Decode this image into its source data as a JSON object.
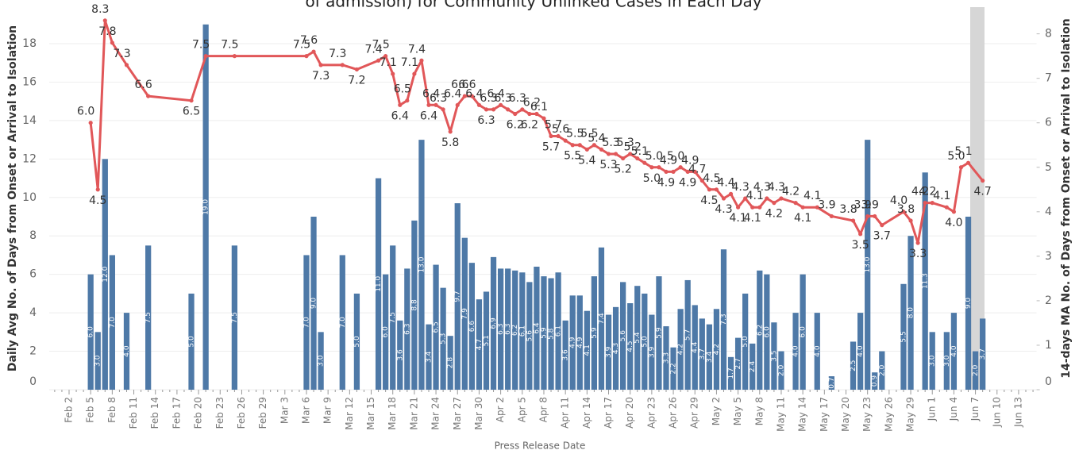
{
  "chart_data": {
    "type": "combo",
    "title": "of admission) for Community Unlinked Cases in Each Day",
    "x_label": "Press Release Date",
    "y_label": "Daily Avg No. of Days from Onset or Arrival to Isolation",
    "y2_label": "14-days MA No. of Days from Onset or Arrival to Isolation",
    "grid": true,
    "ylim": [
      0,
      19.9
    ],
    "yticks": [
      0,
      2,
      4,
      6,
      8,
      10,
      12,
      14,
      16,
      18
    ],
    "y2lim": [
      0,
      8.6
    ],
    "y2ticks": [
      0,
      1,
      2,
      3,
      4,
      5,
      6,
      7,
      8
    ],
    "categories": [
      null,
      null,
      "Feb 2",
      null,
      null,
      "Feb 5",
      null,
      null,
      "Feb 8",
      null,
      null,
      "Feb 11",
      null,
      null,
      "Feb 14",
      null,
      null,
      "Feb 17",
      null,
      null,
      "Feb 20",
      null,
      null,
      "Feb 23",
      null,
      null,
      "Feb 26",
      null,
      null,
      "Feb 29",
      null,
      null,
      "Mar 3",
      null,
      null,
      "Mar 6",
      null,
      null,
      "Mar 9",
      null,
      null,
      "Mar 12",
      null,
      null,
      "Mar 15",
      null,
      null,
      "Mar 18",
      null,
      null,
      "Mar 21",
      null,
      null,
      "Mar 24",
      null,
      null,
      "Mar 27",
      null,
      null,
      "Mar 30",
      null,
      null,
      "Apr 2",
      null,
      null,
      "Apr 5",
      null,
      null,
      "Apr 8",
      null,
      null,
      "Apr 11",
      null,
      null,
      "Apr 14",
      null,
      null,
      "Apr 17",
      null,
      null,
      "Apr 20",
      null,
      null,
      "Apr 23",
      null,
      null,
      "Apr 26",
      null,
      null,
      "Apr 29",
      null,
      null,
      "May 2",
      null,
      null,
      "May 5",
      null,
      null,
      "May 8",
      null,
      null,
      "May 11",
      null,
      null,
      "May 14",
      null,
      null,
      "May 17",
      null,
      null,
      "May 20",
      null,
      null,
      "May 23",
      null,
      null,
      "May 26",
      null,
      null,
      "May 29",
      null,
      null,
      "Jun 1",
      null,
      null,
      "Jun 4",
      null,
      null,
      "Jun 7",
      null,
      null,
      "Jun 10",
      null,
      null,
      "Jun 13",
      null,
      null
    ],
    "series": [
      {
        "type": "bar",
        "color": "#4e79a7",
        "values": [
          null,
          null,
          null,
          null,
          null,
          6.0,
          3.0,
          12.0,
          7.0,
          null,
          4.0,
          null,
          null,
          7.5,
          null,
          null,
          null,
          null,
          null,
          5.0,
          null,
          19.0,
          null,
          null,
          null,
          7.5,
          null,
          null,
          null,
          null,
          null,
          null,
          null,
          null,
          null,
          7.0,
          9.0,
          3.0,
          null,
          null,
          7.0,
          null,
          5.0,
          null,
          null,
          11.0,
          6.0,
          7.5,
          3.6,
          6.3,
          8.8,
          13.0,
          3.4,
          6.5,
          5.3,
          2.8,
          9.7,
          7.9,
          6.6,
          4.7,
          5.1,
          6.9,
          6.3,
          6.3,
          6.2,
          6.1,
          5.6,
          6.4,
          5.9,
          5.8,
          6.1,
          3.6,
          4.9,
          4.9,
          4.1,
          5.9,
          7.4,
          3.9,
          4.3,
          5.6,
          4.5,
          5.4,
          5.0,
          3.9,
          5.9,
          3.3,
          2.2,
          4.2,
          5.7,
          4.4,
          3.7,
          3.4,
          4.2,
          7.3,
          1.7,
          2.7,
          5.0,
          2.4,
          6.2,
          6.0,
          3.5,
          2.0,
          null,
          4.0,
          6.0,
          null,
          4.0,
          null,
          0.7,
          null,
          null,
          2.5,
          4.0,
          13.0,
          0.9,
          2.0,
          null,
          null,
          5.5,
          8.0,
          null,
          11.3,
          3.0,
          null,
          3.0,
          4.0,
          null,
          9.0,
          2.0,
          3.7,
          null,
          null,
          null,
          null,
          null,
          null,
          null
        ],
        "value_labels": [
          null,
          null,
          null,
          null,
          null,
          "6.0",
          "3.0",
          "12.0",
          "7.0",
          null,
          "4.0",
          null,
          null,
          "7.5",
          null,
          null,
          null,
          null,
          null,
          "5.0",
          null,
          "19.0",
          null,
          null,
          null,
          "7.5",
          null,
          null,
          null,
          null,
          null,
          null,
          null,
          null,
          null,
          "7.0",
          "9.0",
          "3.0",
          null,
          null,
          "7.0",
          null,
          "5.0",
          null,
          null,
          "11.0",
          "6.0",
          "7.5",
          "3.6",
          "6.3",
          "8.8",
          "13.0",
          "3.4",
          "6.5",
          "5.3",
          "2.8",
          "9.7",
          "7.9",
          "6.6",
          "4.7",
          "5.1",
          "6.9",
          "6.3",
          "6.3",
          "6.2",
          "6.1",
          "5.6",
          "6.4",
          "5.9",
          "5.8",
          "6.1",
          "3.6",
          "4.9",
          "4.9",
          "4.1",
          "5.9",
          "7.4",
          "3.9",
          "4.3",
          "5.6",
          "4.5",
          "5.4",
          "5.0",
          "3.9",
          "5.9",
          "3.3",
          "2.2",
          "4.2",
          "5.7",
          "4.4",
          "3.7",
          "3.4",
          "4.2",
          "7.3",
          "1.7",
          "2.7",
          "5.0",
          "2.4",
          "6.2",
          "6.0",
          "3.5",
          "2.0",
          null,
          "4.0",
          "6.0",
          null,
          "4.0",
          null,
          "0.7",
          null,
          null,
          "2.5",
          "4.0",
          "13.0",
          "0.9",
          "2.0",
          null,
          null,
          "5.5",
          "8.0",
          null,
          "11.3",
          "3.0",
          null,
          "3.0",
          "4.0",
          null,
          "9.0",
          "2.0",
          "3.7",
          null,
          null,
          null,
          null,
          null,
          null,
          null
        ]
      },
      {
        "type": "line",
        "axis": "y2",
        "color": "#e15759",
        "values": [
          null,
          null,
          null,
          null,
          null,
          6.0,
          4.5,
          8.3,
          7.8,
          null,
          7.3,
          null,
          null,
          6.6,
          null,
          null,
          null,
          null,
          null,
          6.5,
          null,
          7.5,
          null,
          null,
          null,
          7.5,
          null,
          null,
          null,
          null,
          null,
          null,
          null,
          null,
          null,
          7.5,
          7.6,
          7.3,
          null,
          null,
          7.3,
          null,
          7.2,
          null,
          null,
          7.4,
          7.5,
          7.1,
          6.4,
          6.5,
          7.1,
          7.4,
          6.4,
          6.4,
          6.3,
          5.8,
          6.4,
          6.6,
          6.6,
          6.4,
          6.3,
          6.3,
          6.4,
          6.3,
          6.2,
          6.3,
          6.2,
          6.2,
          6.1,
          5.7,
          5.7,
          5.6,
          5.5,
          5.5,
          5.4,
          5.5,
          5.4,
          5.3,
          5.3,
          5.2,
          5.3,
          5.2,
          5.1,
          5.0,
          5.0,
          4.9,
          4.9,
          5.0,
          4.9,
          4.9,
          4.7,
          4.5,
          4.5,
          4.3,
          4.4,
          4.1,
          4.3,
          4.1,
          4.1,
          4.3,
          4.2,
          4.3,
          null,
          4.2,
          4.1,
          null,
          4.1,
          null,
          3.9,
          null,
          null,
          3.8,
          3.5,
          3.9,
          3.9,
          3.7,
          null,
          null,
          4.0,
          3.8,
          3.3,
          4.2,
          4.2,
          null,
          4.1,
          4.0,
          5.0,
          5.1,
          null,
          4.7,
          null,
          null,
          null,
          null,
          null,
          null,
          null
        ],
        "value_labels": [
          null,
          null,
          null,
          null,
          null,
          "6.0",
          "4.5",
          "8.3",
          "7.8",
          null,
          "7.3",
          null,
          null,
          "6.6",
          null,
          null,
          null,
          null,
          null,
          "6.5",
          null,
          "7.5",
          null,
          null,
          null,
          "7.5",
          null,
          null,
          null,
          null,
          null,
          null,
          null,
          null,
          null,
          "7.5",
          "7.6",
          "7.3",
          null,
          null,
          "7.3",
          null,
          "7.2",
          null,
          null,
          "7.4",
          "7.5",
          "7.1",
          "6.4",
          "6.5",
          "7.1",
          "7.4",
          "6.4",
          "6.4",
          "6.3",
          "5.8",
          "6.4",
          "6.6",
          "6.6",
          "6.4",
          "6.3",
          "6.3",
          "6.4",
          "6.3",
          "6.2",
          "6.3",
          "6.2",
          "6.2",
          "6.1",
          "5.7",
          "5.7",
          "5.6",
          "5.5",
          "5.5",
          "5.4",
          "5.5",
          "5.4",
          "5.3",
          "5.3",
          "5.2",
          "5.3",
          "5.2",
          "5.1",
          "5.0",
          "5.0",
          "4.9",
          "4.9",
          "5.0",
          "4.9",
          "4.9",
          "4.7",
          "4.5",
          "4.5",
          "4.3",
          "4.4",
          "4.1",
          "4.3",
          "4.1",
          "4.1",
          "4.3",
          "4.2",
          "4.3",
          null,
          "4.2",
          "4.1",
          null,
          "4.1",
          null,
          "3.9",
          null,
          null,
          "3.8",
          "3.5",
          "3.9",
          "3.9",
          "3.7",
          null,
          null,
          "4.0",
          "3.8",
          "3.3",
          "4.2",
          "4.2",
          null,
          "4.1",
          "4.0",
          "5.0",
          "5.1",
          null,
          "4.7",
          null,
          null,
          null,
          null,
          null,
          null,
          null
        ]
      }
    ]
  }
}
